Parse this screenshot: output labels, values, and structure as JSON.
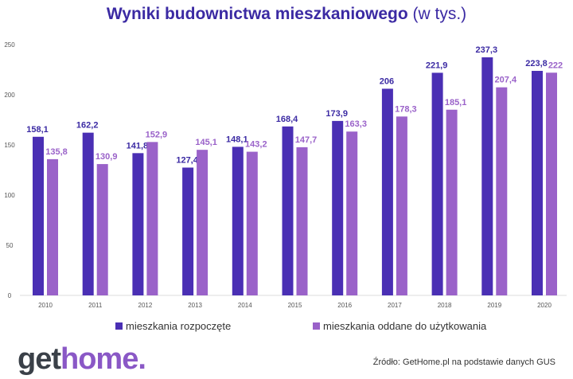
{
  "title": {
    "bold": "Wyniki budownictwa mieszkaniowego",
    "suffix": "(w tys.)"
  },
  "chart_data": {
    "type": "bar",
    "title": "Wyniki budownictwa mieszkaniowego (w tys.)",
    "categories": [
      "2010",
      "2011",
      "2012",
      "2013",
      "2014",
      "2015",
      "2016",
      "2017",
      "2018",
      "2019",
      "2020"
    ],
    "series": [
      {
        "name": "mieszkania rozpoczęte",
        "color": "#4a2fb4",
        "values": [
          158.1,
          162.2,
          141.8,
          127.4,
          148.1,
          168.4,
          173.9,
          206,
          221.9,
          237.3,
          223.8
        ],
        "labels": [
          "158,1",
          "162,2",
          "141,8",
          "127,4",
          "148,1",
          "168,4",
          "173,9",
          "206",
          "221,9",
          "237,3",
          "223,8"
        ]
      },
      {
        "name": "mieszkania oddane do użytkowania",
        "color": "#9a62c9",
        "values": [
          135.8,
          130.9,
          152.9,
          145.1,
          143.2,
          147.7,
          163.3,
          178.3,
          185.1,
          207.4,
          222
        ],
        "labels": [
          "135,8",
          "130,9",
          "152,9",
          "145,1",
          "143,2",
          "147,7",
          "163,3",
          "178,3",
          "185,1",
          "207,4",
          "222"
        ]
      }
    ],
    "ylim": [
      0,
      250
    ],
    "yticks": [
      "0",
      "50",
      "100",
      "150",
      "200",
      "250"
    ],
    "grid": false,
    "legend": "bottom"
  },
  "logo": {
    "part1": "get",
    "part2": "home."
  },
  "source": "Źródło: GetHome.pl na podstawie danych GUS"
}
